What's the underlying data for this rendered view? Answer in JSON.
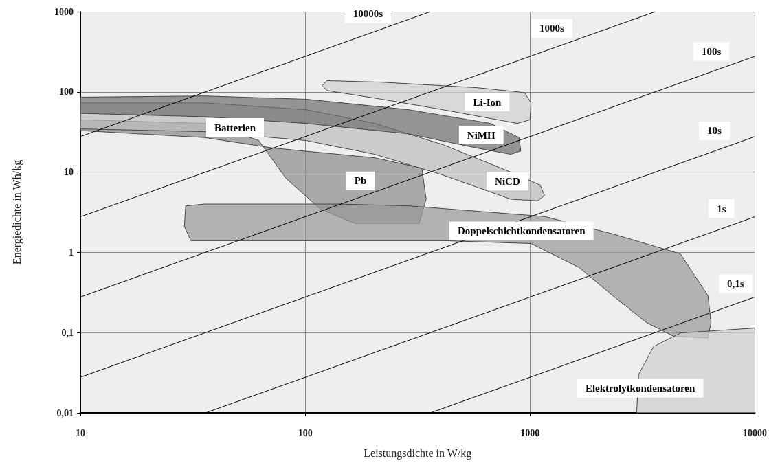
{
  "chart_data": {
    "type": "area",
    "xlabel": "Leistungsdichte in W/kg",
    "ylabel": "Energiedichte in Wh/kg",
    "log": "xy",
    "grid": true,
    "legend": false,
    "xlim": [
      10,
      10000
    ],
    "xticks": [
      10,
      100,
      1000,
      10000
    ],
    "ylim": [
      0.01,
      1000
    ],
    "yticks": [
      {
        "value": 0.01,
        "label": "0,01"
      },
      {
        "value": 0.1,
        "label": "0,1"
      },
      1,
      10,
      100,
      1000
    ],
    "annotations": [
      "Batterien"
    ],
    "series": [
      {
        "name": "Pb",
        "color": "#8c8c8c",
        "x": [
          10,
          35.7,
          62,
          82,
          117,
          166,
          321,
          345,
          330,
          204,
          72,
          35.7,
          10
        ],
        "values": [
          45,
          40.5,
          25,
          8.4,
          3.45,
          2.3,
          2.3,
          4.6,
          11.2,
          15.1,
          20,
          27,
          33
        ]
      },
      {
        "name": "NiCD",
        "color": "#bdbdbd",
        "x": [
          10,
          35.7,
          101,
          204,
          410,
          821,
          1110,
          1160,
          1080,
          821,
          410,
          204,
          101,
          35.7,
          10
        ],
        "values": [
          73,
          73,
          60,
          40.5,
          22,
          10,
          6.9,
          5.1,
          4.4,
          4.6,
          9.2,
          16.7,
          24.8,
          32,
          34.6
        ]
      },
      {
        "name": "NiMH",
        "color": "#6e6e6e",
        "x": [
          10,
          35.7,
          101,
          289,
          580,
          821,
          910,
          892,
          666,
          289,
          101,
          35.7,
          10
        ],
        "values": [
          54,
          49,
          40.5,
          30,
          20,
          16.7,
          18.4,
          27,
          40.5,
          60,
          81,
          89,
          86
        ]
      },
      {
        "name": "Li-Ion",
        "color": "#d0d0d0",
        "x": [
          119,
          125,
          219,
          580,
          944,
          1010,
          1000,
          880,
          410,
          219,
          125
        ],
        "values": [
          120,
          138,
          132,
          113,
          98,
          73,
          45,
          40.5,
          60,
          81,
          104
        ]
      },
      {
        "name": "Doppelschichtkondensatoren",
        "color": "#999999",
        "x": [
          29.4,
          35.7,
          144,
          289,
          1160,
          2330,
          4660,
          6180,
          6380,
          6180,
          4360,
          3300,
          2330,
          1650,
          1010,
          410,
          101,
          31,
          29
        ],
        "values": [
          3.8,
          4.0,
          4.0,
          3.8,
          2.8,
          1.7,
          0.96,
          0.29,
          0.133,
          0.086,
          0.09,
          0.133,
          0.29,
          0.65,
          1.29,
          1.4,
          1.4,
          1.4,
          2.1
        ]
      },
      {
        "name": "Elektrolytkondensatoren",
        "color": "#cfcfcf",
        "x": [
          2980,
          3040,
          3540,
          4660,
          10000,
          10000,
          2980
        ],
        "values": [
          0.0103,
          0.03,
          0.067,
          0.099,
          0.114,
          0.01,
          0.01
        ]
      },
      {
        "name": "10000s",
        "type": "line",
        "color": "#000000",
        "x": [
          10,
          190,
          360
        ],
        "values": [
          27.8,
          527,
          1000
        ]
      },
      {
        "name": "1000s",
        "type": "line",
        "color": "#000000",
        "x": [
          10,
          1250,
          3600
        ],
        "values": [
          2.78,
          347,
          1000
        ]
      },
      {
        "name": "100s",
        "type": "line",
        "color": "#000000",
        "x": [
          10,
          6400,
          10000
        ],
        "values": [
          0.278,
          178,
          278
        ]
      },
      {
        "name": "10s",
        "type": "line",
        "color": "#000000",
        "x": [
          10,
          6600,
          10000
        ],
        "values": [
          0.0278,
          18.3,
          27.8
        ]
      },
      {
        "name": "1s",
        "type": "line",
        "color": "#000000",
        "x": [
          36,
          7100,
          10000
        ],
        "values": [
          0.01,
          1.97,
          2.78
        ]
      },
      {
        "name": "0,1s",
        "type": "line",
        "color": "#000000",
        "x": [
          360,
          8200,
          10000
        ],
        "values": [
          0.01,
          0.228,
          0.278
        ]
      }
    ]
  }
}
